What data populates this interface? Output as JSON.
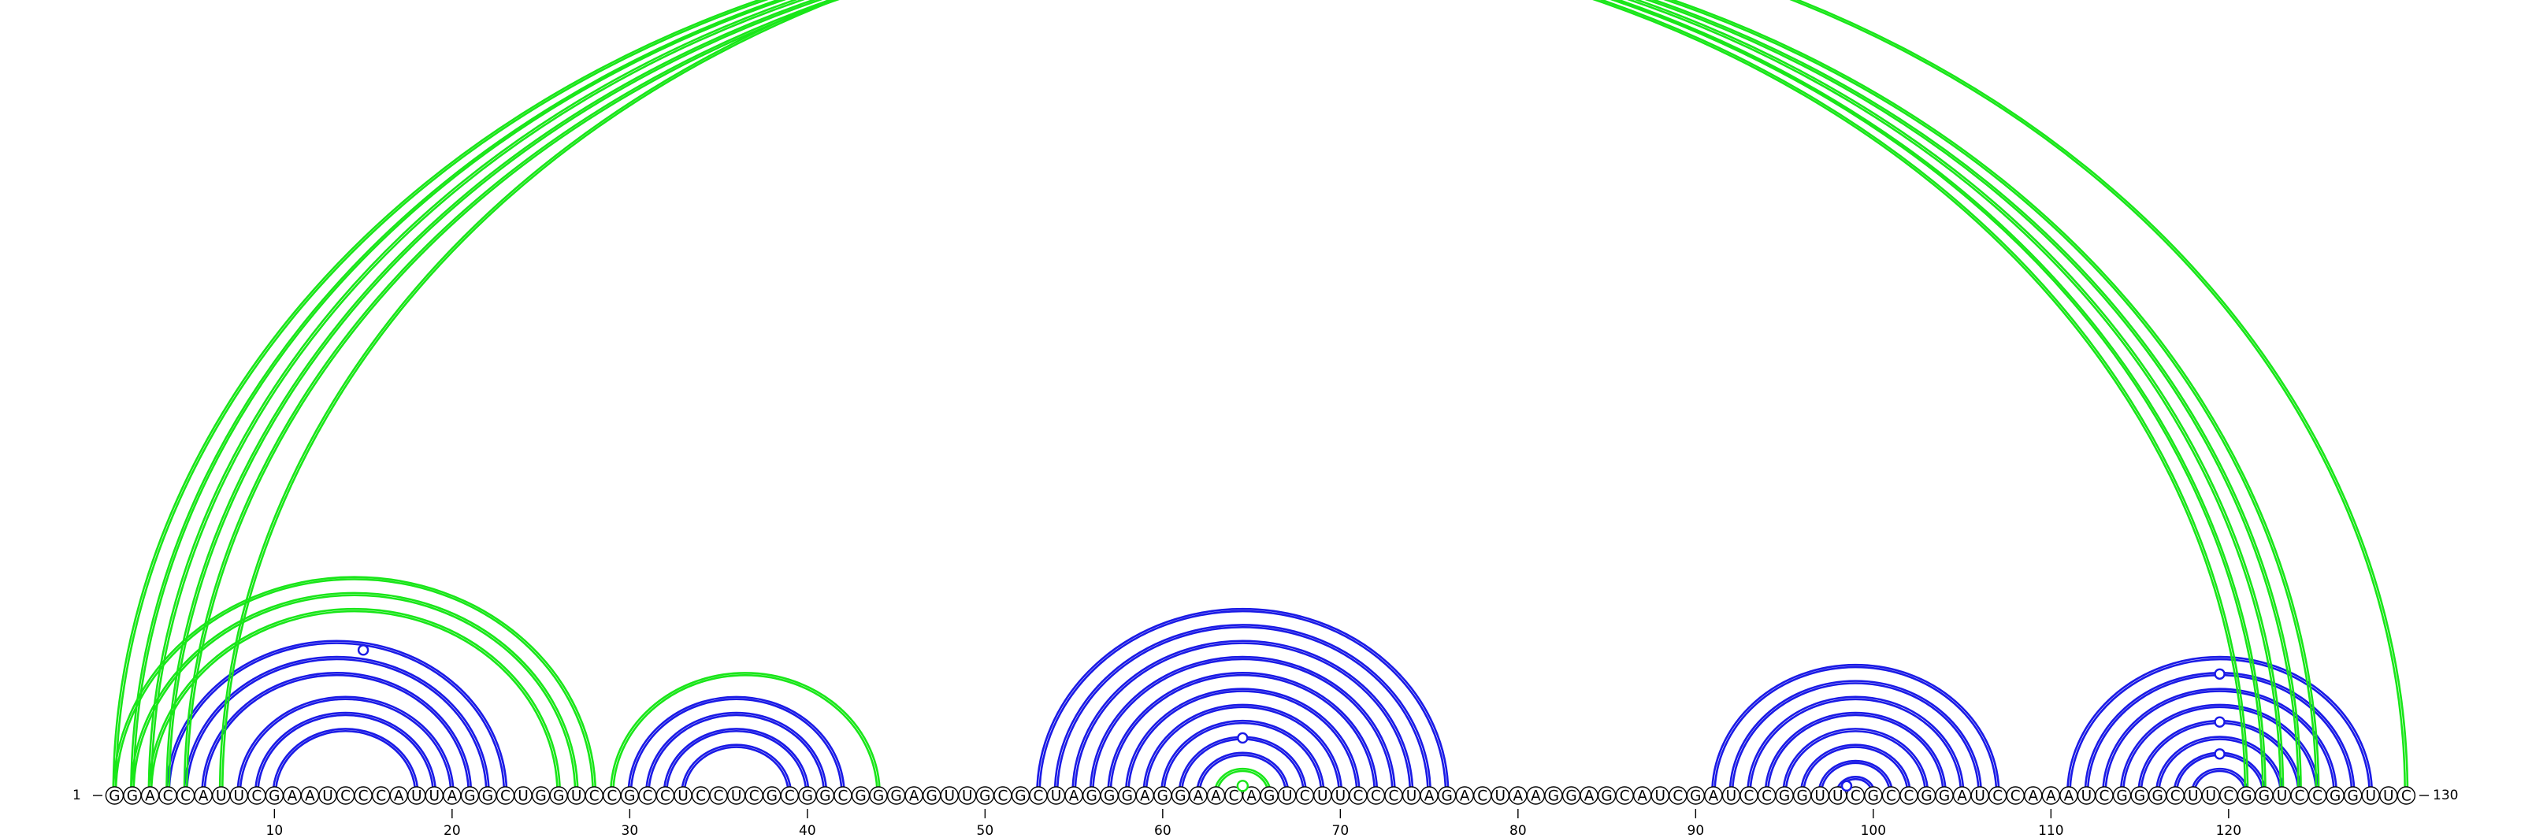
{
  "diagram": {
    "type": "rna-arc-diagram",
    "sequence": "GGACCAUUCGAAUCCCAUUAGGCUGGUCCGCCUCCUCGCGGCGGGAGUUGCGCUAGGGAGGAACAGUCUUCCCUAGACUAAGGAGCAUCGAUCCGGUUCGCCGGAUCCAAAUCGGGCUUCGGUCCGGUUC",
    "length": 130,
    "start_label": "1",
    "end_label": "130",
    "tick_labels": [
      "10",
      "20",
      "30",
      "40",
      "50",
      "60",
      "70",
      "80",
      "90",
      "100",
      "110",
      "120"
    ],
    "tick_positions": [
      10,
      20,
      30,
      40,
      50,
      60,
      70,
      80,
      90,
      100,
      110,
      120
    ],
    "colors": {
      "blue": "#1a1ae6",
      "green": "#19e619"
    },
    "arcs": [
      {
        "i": 1,
        "j": 28,
        "color": "green"
      },
      {
        "i": 2,
        "j": 27,
        "color": "green"
      },
      {
        "i": 3,
        "j": 26,
        "color": "green"
      },
      {
        "i": 4,
        "j": 23,
        "color": "blue"
      },
      {
        "i": 5,
        "j": 22,
        "color": "blue"
      },
      {
        "i": 6,
        "j": 21,
        "color": "blue"
      },
      {
        "i": 8,
        "j": 20,
        "color": "blue"
      },
      {
        "i": 9,
        "j": 19,
        "color": "blue"
      },
      {
        "i": 10,
        "j": 18,
        "color": "blue"
      },
      {
        "i": 29,
        "j": 44,
        "color": "green"
      },
      {
        "i": 30,
        "j": 42,
        "color": "blue"
      },
      {
        "i": 31,
        "j": 41,
        "color": "blue"
      },
      {
        "i": 32,
        "j": 40,
        "color": "blue"
      },
      {
        "i": 33,
        "j": 39,
        "color": "blue"
      },
      {
        "i": 53,
        "j": 76,
        "color": "blue"
      },
      {
        "i": 54,
        "j": 75,
        "color": "blue"
      },
      {
        "i": 55,
        "j": 74,
        "color": "blue"
      },
      {
        "i": 56,
        "j": 73,
        "color": "blue"
      },
      {
        "i": 57,
        "j": 72,
        "color": "blue"
      },
      {
        "i": 58,
        "j": 71,
        "color": "blue"
      },
      {
        "i": 59,
        "j": 70,
        "color": "blue"
      },
      {
        "i": 60,
        "j": 69,
        "color": "blue"
      },
      {
        "i": 61,
        "j": 68,
        "color": "blue"
      },
      {
        "i": 62,
        "j": 67,
        "color": "blue"
      },
      {
        "i": 63,
        "j": 66,
        "color": "green"
      },
      {
        "i": 91,
        "j": 107,
        "color": "blue"
      },
      {
        "i": 92,
        "j": 106,
        "color": "blue"
      },
      {
        "i": 93,
        "j": 105,
        "color": "blue"
      },
      {
        "i": 94,
        "j": 104,
        "color": "blue"
      },
      {
        "i": 95,
        "j": 103,
        "color": "blue"
      },
      {
        "i": 96,
        "j": 102,
        "color": "blue"
      },
      {
        "i": 97,
        "j": 101,
        "color": "blue"
      },
      {
        "i": 98,
        "j": 100,
        "color": "blue"
      },
      {
        "i": 111,
        "j": 128,
        "color": "blue"
      },
      {
        "i": 112,
        "j": 127,
        "color": "blue"
      },
      {
        "i": 113,
        "j": 126,
        "color": "blue"
      },
      {
        "i": 114,
        "j": 125,
        "color": "blue"
      },
      {
        "i": 115,
        "j": 124,
        "color": "blue"
      },
      {
        "i": 116,
        "j": 123,
        "color": "blue"
      },
      {
        "i": 117,
        "j": 122,
        "color": "blue"
      },
      {
        "i": 118,
        "j": 121,
        "color": "blue"
      },
      {
        "i": 1,
        "j": 121,
        "color": "green"
      },
      {
        "i": 2,
        "j": 122,
        "color": "green"
      },
      {
        "i": 3,
        "j": 123,
        "color": "green"
      },
      {
        "i": 4,
        "j": 124,
        "color": "green"
      },
      {
        "i": 5,
        "j": 125,
        "color": "green"
      },
      {
        "i": 7,
        "j": 130,
        "color": "green"
      }
    ],
    "apex_markers": [
      {
        "i": 6,
        "j": 24,
        "color": "blue",
        "filled": false
      },
      {
        "i": 61,
        "j": 68,
        "color": "blue",
        "filled": false
      },
      {
        "i": 64,
        "j": 65,
        "color": "green",
        "filled": true
      },
      {
        "i": 98,
        "j": 99,
        "color": "blue",
        "filled": false
      },
      {
        "i": 112,
        "j": 127,
        "color": "blue",
        "filled": false
      },
      {
        "i": 115,
        "j": 124,
        "color": "blue",
        "filled": false
      },
      {
        "i": 117,
        "j": 122,
        "color": "blue",
        "filled": false
      },
      {
        "i": 7,
        "j": 123,
        "color": "green",
        "filled": false
      }
    ]
  }
}
